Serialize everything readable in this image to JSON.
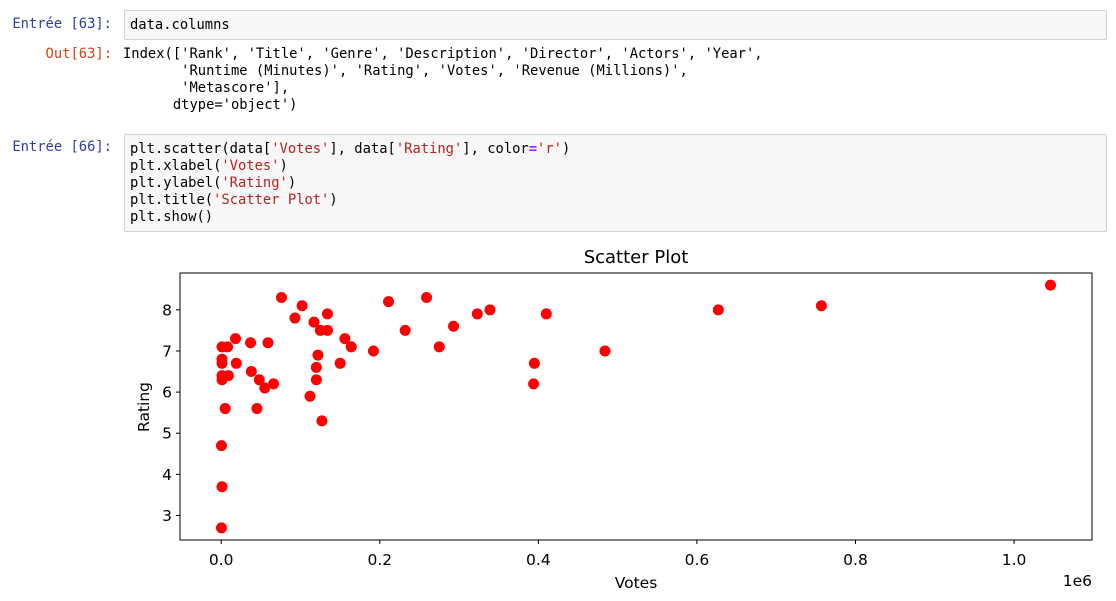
{
  "cells": [
    {
      "prompt": "Entrée [63]:",
      "input": [
        [
          "data.columns"
        ]
      ],
      "out_prompt": "Out[63]:",
      "output": [
        "Index(['Rank', 'Title', 'Genre', 'Description', 'Director', 'Actors', 'Year',",
        "       'Runtime (Minutes)', 'Rating', 'Votes', 'Revenue (Millions)',",
        "       'Metascore'],",
        "      dtype='object')"
      ]
    },
    {
      "prompt": "Entrée [66]:",
      "input": [
        [
          "plt.scatter(data[",
          "'Votes'",
          "], data[",
          "'Rating'",
          "], color",
          "=",
          "'r'",
          ")"
        ],
        [
          "plt.xlabel(",
          "'Votes'",
          ")"
        ],
        [
          "plt.ylabel(",
          "'Rating'",
          ")"
        ],
        [
          "plt.title(",
          "'Scatter Plot'",
          ")"
        ],
        [
          "plt.show()"
        ]
      ]
    }
  ],
  "chart_data": {
    "type": "scatter",
    "title": "Scatter Plot",
    "x_label": "Votes",
    "y_label": "Rating",
    "x_offset_label": "1e6",
    "color": "#ff0000",
    "x": [
      1046000,
      627000,
      757000,
      484000,
      395000,
      394000,
      410000,
      339000,
      323000,
      293000,
      275000,
      259000,
      232000,
      211000,
      192000,
      164000,
      156000,
      150000,
      134000,
      134000,
      125000,
      122000,
      120000,
      120000,
      117000,
      127000,
      112000,
      102000,
      93000,
      76000,
      66000,
      59000,
      55000,
      48000,
      45000,
      38000,
      37000,
      19000,
      18000,
      9000,
      8000,
      5000,
      1000,
      1000,
      1000,
      1000,
      1000,
      300,
      1000,
      300
    ],
    "values": [
      8.6,
      8.0,
      8.1,
      7.0,
      6.7,
      6.2,
      7.9,
      8.0,
      7.9,
      7.6,
      7.1,
      8.3,
      7.5,
      8.2,
      7.0,
      7.1,
      7.3,
      6.7,
      7.9,
      7.5,
      7.5,
      6.9,
      6.6,
      6.3,
      7.7,
      5.3,
      5.9,
      8.1,
      7.8,
      8.3,
      6.2,
      7.2,
      6.1,
      6.3,
      5.6,
      6.5,
      7.2,
      6.7,
      7.3,
      6.4,
      7.1,
      5.6,
      6.4,
      6.3,
      7.1,
      6.8,
      6.7,
      4.7,
      3.7,
      2.7
    ],
    "xlim": [
      -51985,
      1098285
    ],
    "ylim": [
      2.405,
      8.895
    ],
    "xticks": [
      {
        "value": 0,
        "label": "0.0"
      },
      {
        "value": 200000,
        "label": "0.2"
      },
      {
        "value": 400000,
        "label": "0.4"
      },
      {
        "value": 600000,
        "label": "0.6"
      },
      {
        "value": 800000,
        "label": "0.8"
      },
      {
        "value": 1000000,
        "label": "1.0"
      }
    ],
    "yticks": [
      3,
      4,
      5,
      6,
      7,
      8
    ],
    "grid": false
  }
}
